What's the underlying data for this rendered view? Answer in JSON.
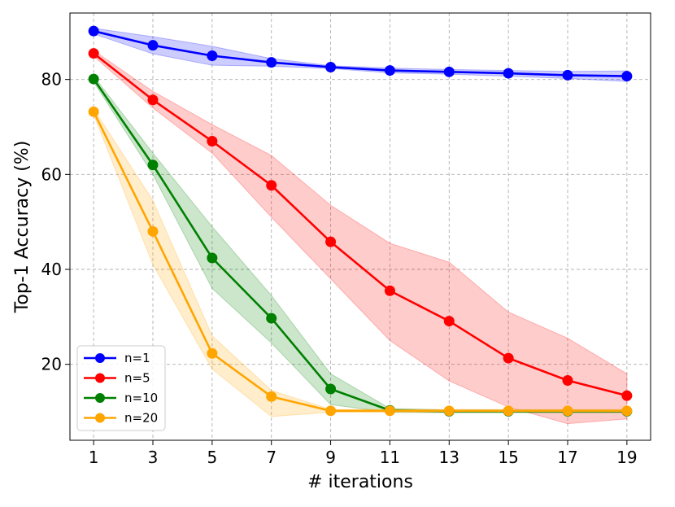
{
  "chart_data": {
    "type": "line",
    "title": "",
    "xlabel": "# iterations",
    "ylabel": "Top-1 Accuracy (%)",
    "x": [
      1,
      3,
      5,
      7,
      9,
      11,
      13,
      15,
      17,
      19
    ],
    "xlim": [
      0.2,
      19.8
    ],
    "ylim": [
      4,
      94
    ],
    "xticks": [
      1,
      3,
      5,
      7,
      9,
      11,
      13,
      15,
      17,
      19
    ],
    "yticks": [
      20,
      40,
      60,
      80
    ],
    "grid": true,
    "legend_position": "bottom-left",
    "series": [
      {
        "name": "n=1",
        "color": "#0000ff",
        "values": [
          90.2,
          87.2,
          85.0,
          83.6,
          82.6,
          81.9,
          81.6,
          81.3,
          80.9,
          80.7
        ],
        "lower": [
          89.6,
          85.4,
          83.0,
          82.8,
          82.3,
          81.4,
          81.1,
          80.7,
          80.2,
          79.6
        ],
        "upper": [
          90.8,
          89.0,
          87.0,
          84.4,
          82.9,
          82.4,
          82.1,
          81.9,
          81.7,
          81.8
        ]
      },
      {
        "name": "n=5",
        "color": "#ff0000",
        "values": [
          85.5,
          75.7,
          67.0,
          57.7,
          45.8,
          35.5,
          29.1,
          21.3,
          16.6,
          13.4
        ],
        "lower": [
          84.9,
          74.0,
          64.5,
          51.0,
          38.0,
          25.0,
          16.5,
          11.0,
          7.5,
          8.5
        ],
        "upper": [
          86.1,
          77.5,
          70.5,
          64.0,
          53.5,
          45.5,
          41.5,
          31.0,
          25.5,
          18.0
        ]
      },
      {
        "name": "n=10",
        "color": "#008000",
        "values": [
          80.1,
          62.0,
          42.4,
          29.7,
          14.8,
          10.3,
          10.1,
          10.1,
          10.1,
          10.1
        ],
        "lower": [
          79.5,
          60.0,
          36.0,
          24.5,
          11.5,
          9.9,
          9.8,
          9.8,
          9.8,
          9.8
        ],
        "upper": [
          80.7,
          64.5,
          49.0,
          34.5,
          18.0,
          10.7,
          10.4,
          10.4,
          10.4,
          10.4
        ]
      },
      {
        "name": "n=20",
        "color": "#ffa500",
        "values": [
          73.2,
          48.0,
          22.3,
          13.2,
          10.2,
          10.2,
          10.2,
          10.2,
          10.2,
          10.2
        ],
        "lower": [
          72.6,
          41.0,
          19.0,
          9.0,
          9.9,
          9.9,
          9.9,
          9.9,
          9.9,
          9.9
        ],
        "upper": [
          73.8,
          54.5,
          26.0,
          14.5,
          10.5,
          10.5,
          10.5,
          10.5,
          10.5,
          10.5
        ]
      }
    ]
  }
}
